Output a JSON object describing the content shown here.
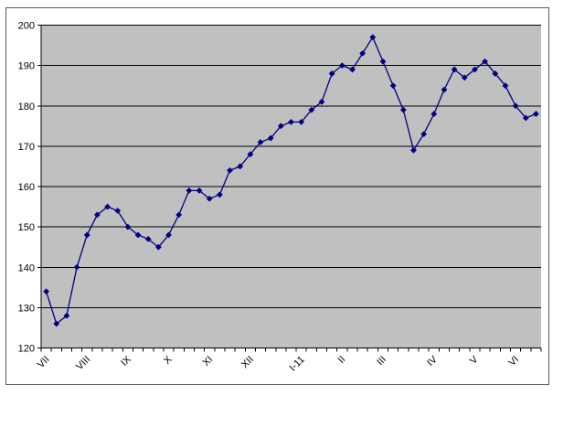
{
  "chart_data": {
    "type": "line",
    "title": "",
    "xlabel": "",
    "ylabel": "",
    "legend": false,
    "grid": true,
    "marker": "diamond",
    "n_points": 49,
    "values": [
      134,
      126,
      128,
      140,
      148,
      153,
      155,
      154,
      150,
      148,
      147,
      145,
      148,
      153,
      159,
      159,
      157,
      158,
      164,
      165,
      168,
      171,
      172,
      175,
      176,
      176,
      179,
      181,
      188,
      190,
      189,
      193,
      197,
      191,
      185,
      179,
      169,
      173,
      178,
      184,
      189,
      187,
      189,
      191,
      188,
      185,
      180,
      177,
      178
    ],
    "x_labels": [
      {
        "label": "VII",
        "category": 1
      },
      {
        "label": "VIII",
        "category": 5
      },
      {
        "label": "IX",
        "category": 9
      },
      {
        "label": "X",
        "category": 13
      },
      {
        "label": "XI",
        "category": 17
      },
      {
        "label": "XII",
        "category": 21
      },
      {
        "label": "I-11",
        "category": 26
      },
      {
        "label": "II",
        "category": 30
      },
      {
        "label": "III",
        "category": 34
      },
      {
        "label": "IV",
        "category": 39
      },
      {
        "label": "V",
        "category": 43
      },
      {
        "label": "VI",
        "category": 47
      }
    ],
    "y_axis": {
      "min": 120,
      "max": 200,
      "step": 10,
      "tick_labels": [
        "120",
        "130",
        "140",
        "150",
        "160",
        "170",
        "180",
        "190",
        "200"
      ]
    },
    "colors": {
      "series": "#000080",
      "plot_background": "#c0c0c0",
      "gridline": "#000000",
      "axis": "#000000",
      "chart_border": "#5a5a5a",
      "chart_background": "#ffffff",
      "text": "#000000"
    }
  }
}
